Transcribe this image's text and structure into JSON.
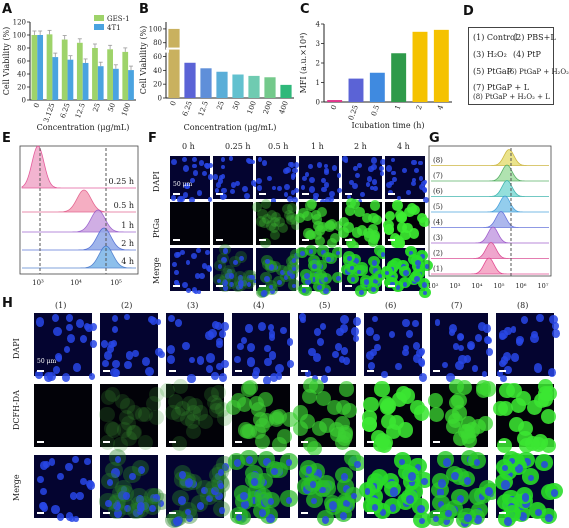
{
  "panels": {
    "A": "A",
    "B": "B",
    "C": "C",
    "D": "D",
    "E": "E",
    "F": "F",
    "G": "G",
    "H": "H"
  },
  "colors": {
    "green": "#9ed36a",
    "blue": "#4aa3e0"
  },
  "chart_data": [
    {
      "panel": "A",
      "type": "bar",
      "categories": [
        "0",
        "3.125",
        "6.25",
        "12.5",
        "25",
        "50",
        "100"
      ],
      "series": [
        {
          "name": "GES-1",
          "values": [
            100,
            101,
            93,
            88,
            80,
            78,
            74
          ],
          "color": "#9ed36a"
        },
        {
          "name": "4T1",
          "values": [
            100,
            66,
            62,
            57,
            52,
            48,
            46
          ],
          "color": "#4aa3e0"
        }
      ],
      "xlabel": "Concentration (μg/mL)",
      "ylabel": "Cell Viability (%)",
      "ylim": [
        0,
        120
      ],
      "yticks": [
        0,
        20,
        40,
        60,
        80,
        100,
        120
      ]
    },
    {
      "panel": "B",
      "type": "bar",
      "categories": [
        "0",
        "6.25",
        "12.5",
        "25",
        "50",
        "100",
        "200",
        "400"
      ],
      "values": [
        100,
        51,
        43,
        38,
        34,
        32,
        30,
        19
      ],
      "colors": [
        "#c9b15f",
        "#5b63d6",
        "#5f8fd9",
        "#5aaed8",
        "#62c1cf",
        "#6fcbb1",
        "#74c98b",
        "#2fb87a"
      ],
      "xlabel": "Concentration (μg/mL)",
      "ylabel": "Cell Viability (%)",
      "ylim": [
        0,
        110
      ],
      "yticks": [
        0,
        20,
        40,
        60,
        80,
        100
      ]
    },
    {
      "panel": "C",
      "type": "bar",
      "categories": [
        "0",
        "0.25",
        "0.5",
        "1",
        "2",
        "4"
      ],
      "values": [
        0.1,
        1.2,
        1.5,
        2.5,
        3.6,
        3.7
      ],
      "colors": [
        "#e0348a",
        "#5b63d6",
        "#3f8ae0",
        "#2e9a4a",
        "#f5c200",
        "#f5c200"
      ],
      "xlabel": "Icubation time (h)",
      "ylabel": "MFI (a.u.×10⁴)",
      "ylim": [
        0,
        4
      ],
      "yticks": [
        0,
        1,
        2,
        3,
        4
      ]
    },
    {
      "panel": "E",
      "type": "area",
      "series": [
        "0.25 h",
        "0.5 h",
        "1 h",
        "2 h",
        "4 h"
      ],
      "xtick_labels": [
        "10³",
        "10⁴",
        "10⁵"
      ]
    },
    {
      "panel": "G",
      "type": "area",
      "series": [
        "(1)",
        "(2)",
        "(3)",
        "(4)",
        "(5)",
        "(6)",
        "(7)",
        "(8)"
      ],
      "xtick_labels": [
        "10²",
        "10³",
        "10⁴",
        "10⁵",
        "10⁶",
        "10⁷"
      ]
    }
  ],
  "legend_D": [
    "(1) Control",
    "(2) PBS+L",
    "(3) H₂O₂",
    "(4) PtP",
    "(5) PtGaP",
    "(6) PtGaP + H₂O₂",
    "(7) PtGaP + L",
    "(8) PtGaP + H₂O₂ + L"
  ],
  "panelF": {
    "cols": [
      "0 h",
      "0.25 h",
      "0.5 h",
      "1 h",
      "2 h",
      "4 h"
    ],
    "rows": [
      "DAPI",
      "PtGa",
      "Merge"
    ],
    "scale": "50 μm"
  },
  "panelH": {
    "cols": [
      "(1)",
      "(2)",
      "(3)",
      "(4)",
      "(5)",
      "(6)",
      "(7)",
      "(8)"
    ],
    "rows": [
      "DAPI",
      "DCFH-DA",
      "Merge"
    ],
    "scale": "50 μm"
  }
}
